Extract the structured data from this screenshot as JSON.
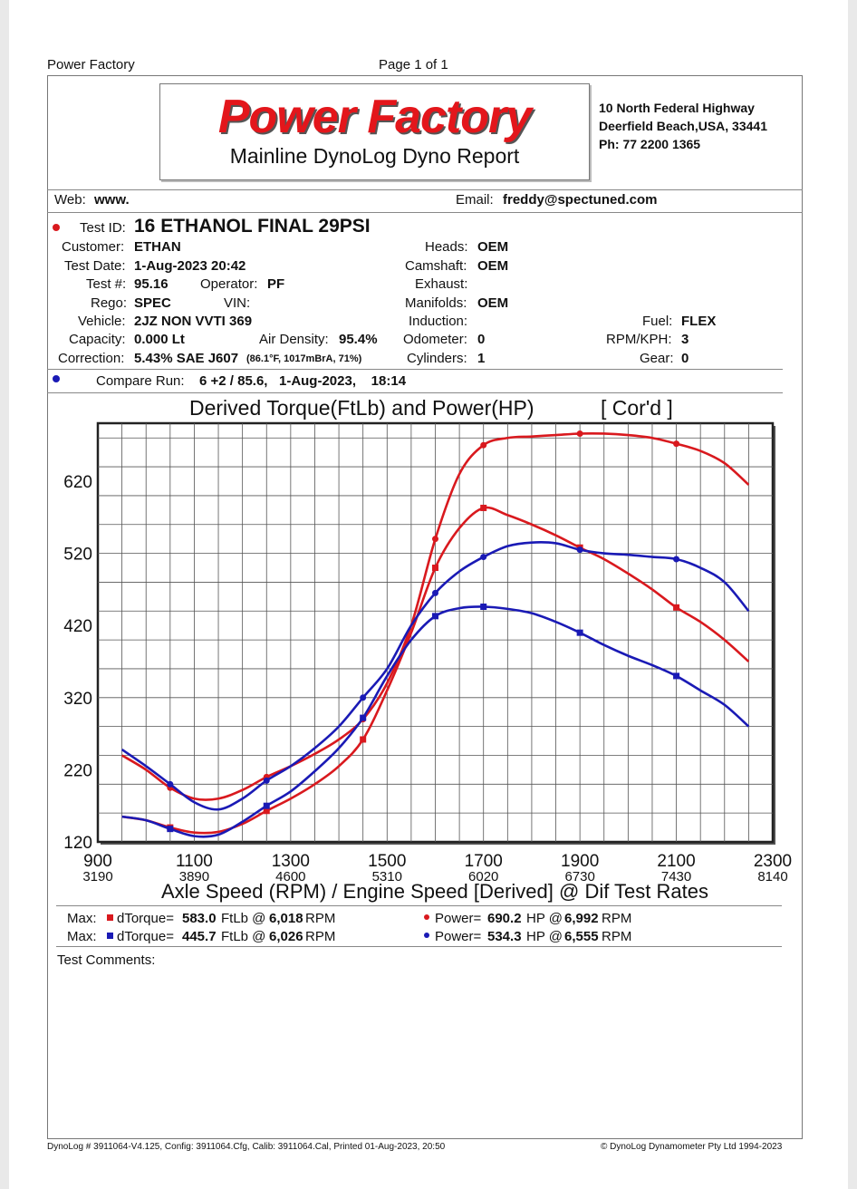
{
  "top_left": "Power Factory",
  "page": "Page 1 of 1",
  "header": {
    "logo": "Power Factory",
    "subtitle": "Mainline DynoLog Dyno Report",
    "address1": "10 North Federal Highway",
    "address2": "Deerfield Beach,USA, 33441",
    "phone": "Ph: 77 2200 1365"
  },
  "web": {
    "label": "Web:",
    "value": "www."
  },
  "email": {
    "label": "Email:",
    "value": "freddy@spectuned.com"
  },
  "test_info": {
    "test_id_label": "Test ID:",
    "test_id": "16 ETHANOL FINAL 29PSI",
    "customer_label": "Customer:",
    "customer": "ETHAN",
    "date_label": "Test Date:",
    "date": "1-Aug-2023 20:42",
    "testnum_label": "Test #:",
    "testnum": "95.16",
    "operator_label": "Operator:",
    "operator": "PF",
    "rego_label": "Rego:",
    "rego": "SPEC",
    "vin_label": "VIN:",
    "vehicle_label": "Vehicle:",
    "vehicle": "2JZ NON VVTI 369",
    "capacity_label": "Capacity:",
    "capacity": "0.000 Lt",
    "airdensity_label": "Air Density:",
    "airdensity": "95.4%",
    "correction_label": "Correction:",
    "correction": "5.43% SAE J607",
    "correction_detail": "(86.1°F, 1017mBrA, 71%)",
    "heads_label": "Heads:",
    "heads": "OEM",
    "camshaft_label": "Camshaft:",
    "camshaft": "OEM",
    "exhaust_label": "Exhaust:",
    "manifolds_label": "Manifolds:",
    "manifolds": "OEM",
    "induction_label": "Induction:",
    "odometer_label": "Odometer:",
    "odometer": "0",
    "cylinders_label": "Cylinders:",
    "cylinders": "1",
    "fuel_label": "Fuel:",
    "fuel": "FLEX",
    "rpmkph_label": "RPM/KPH:",
    "rpmkph": "3",
    "gear_label": "Gear:",
    "gear": "0",
    "compare_label": "Compare Run:",
    "compare_value": "6 +2 / 85.6,   1-Aug-2023,    18:14"
  },
  "colors": {
    "main_run": "#d9191e",
    "compare_run": "#1a1ab5"
  },
  "chart_data": {
    "type": "line",
    "title": "Derived Torque(FtLb) and Power(HP)",
    "title_tag": "[ Cor'd ]",
    "xlabel": "Axle Speed (RPM) / Engine Speed [Derived] @ Dif Test Rates",
    "xlim": [
      900,
      2300
    ],
    "ylim": [
      120,
      700
    ],
    "x_ticks": [
      "900",
      "1100",
      "1300",
      "1500",
      "1700",
      "1900",
      "2100",
      "2300"
    ],
    "x_ticks_engine": [
      "3190",
      "3890",
      "4600",
      "5310",
      "6020",
      "6730",
      "7430",
      "8140"
    ],
    "y_ticks": [
      "120",
      "220",
      "320",
      "420",
      "520",
      "620"
    ],
    "grid": true,
    "series": [
      {
        "id": "red_power",
        "color": "#d9191e",
        "marker": "circle",
        "x": [
          950,
          1000,
          1050,
          1100,
          1150,
          1200,
          1250,
          1300,
          1350,
          1400,
          1450,
          1500,
          1550,
          1600,
          1650,
          1700,
          1750,
          1800,
          1850,
          1900,
          1950,
          2000,
          2050,
          2100,
          2150,
          2200,
          2250
        ],
        "y": [
          240,
          220,
          195,
          180,
          180,
          192,
          210,
          225,
          242,
          262,
          290,
          340,
          420,
          540,
          630,
          670,
          680,
          682,
          684,
          686,
          686,
          684,
          680,
          672,
          662,
          645,
          615
        ]
      },
      {
        "id": "red_torque",
        "color": "#d9191e",
        "marker": "square",
        "x": [
          950,
          1000,
          1050,
          1100,
          1150,
          1200,
          1250,
          1300,
          1350,
          1400,
          1450,
          1500,
          1550,
          1600,
          1650,
          1700,
          1750,
          1800,
          1850,
          1900,
          1950,
          2000,
          2050,
          2100,
          2150,
          2200,
          2250
        ],
        "y": [
          155,
          150,
          140,
          133,
          134,
          145,
          163,
          180,
          200,
          225,
          262,
          330,
          410,
          500,
          555,
          583,
          573,
          560,
          545,
          528,
          512,
          492,
          470,
          445,
          425,
          400,
          370
        ]
      },
      {
        "id": "blue_power",
        "color": "#1a1ab5",
        "marker": "circle",
        "x": [
          950,
          1000,
          1050,
          1100,
          1150,
          1200,
          1250,
          1300,
          1350,
          1400,
          1450,
          1500,
          1550,
          1600,
          1650,
          1700,
          1750,
          1800,
          1850,
          1900,
          1950,
          2000,
          2050,
          2100,
          2150,
          2200,
          2250
        ],
        "y": [
          248,
          225,
          200,
          175,
          165,
          180,
          205,
          225,
          250,
          280,
          320,
          360,
          420,
          465,
          495,
          515,
          530,
          535,
          534,
          525,
          520,
          518,
          515,
          512,
          500,
          480,
          440
        ]
      },
      {
        "id": "blue_torque",
        "color": "#1a1ab5",
        "marker": "square",
        "x": [
          950,
          1000,
          1050,
          1100,
          1150,
          1200,
          1250,
          1300,
          1350,
          1400,
          1450,
          1500,
          1550,
          1600,
          1650,
          1700,
          1750,
          1800,
          1850,
          1900,
          1950,
          2000,
          2050,
          2100,
          2150,
          2200,
          2250
        ],
        "y": [
          155,
          150,
          138,
          128,
          130,
          148,
          170,
          190,
          218,
          250,
          292,
          350,
          400,
          433,
          444,
          446,
          443,
          437,
          425,
          410,
          393,
          378,
          365,
          350,
          330,
          310,
          280
        ]
      }
    ]
  },
  "max": {
    "max_label": "Max:",
    "red_torque_label": "dTorque=",
    "red_torque_val": "583.0",
    "red_torque_unit": "FtLb @",
    "red_torque_rpm": "6,018",
    "rpm_unit": "RPM",
    "blue_torque_label": "dTorque=",
    "blue_torque_val": "445.7",
    "blue_torque_unit": "FtLb @",
    "blue_torque_rpm": "6,026",
    "red_power_label": "Power=",
    "red_power_val": "690.2",
    "red_power_unit": "HP @",
    "red_power_rpm": "6,992",
    "blue_power_label": "Power=",
    "blue_power_val": "534.3",
    "blue_power_unit": "HP @",
    "blue_power_rpm": "6,555"
  },
  "comments_label": "Test Comments:",
  "footer": {
    "left": "DynoLog # 3911064-V4.125, Config: 3911064.Cfg, Calib: 3911064.Cal, Printed 01-Aug-2023, 20:50",
    "right": "© DynoLog Dynamometer Pty Ltd 1994-2023"
  }
}
